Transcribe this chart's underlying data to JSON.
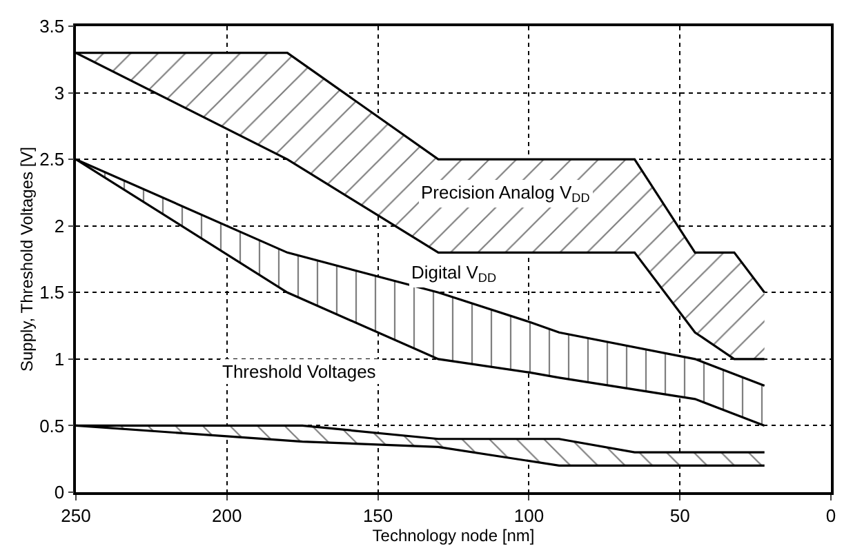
{
  "chart_data": {
    "type": "line",
    "xlabel": "Technology node [nm]",
    "ylabel": "Supply, Threshold Voltages [V]",
    "xlim": [
      250,
      0
    ],
    "xticks": [
      250,
      200,
      150,
      100,
      50,
      0
    ],
    "ylim": [
      0,
      3.5
    ],
    "yticks": [
      0,
      0.5,
      1,
      1.5,
      2,
      2.5,
      3,
      3.5
    ],
    "grid": true,
    "line_style": "solid",
    "marker": "none",
    "series": [
      {
        "color": "#000000",
        "x": [
          250,
          180,
          130,
          65,
          45,
          32,
          22
        ],
        "values": [
          3.3,
          3.3,
          2.5,
          2.5,
          1.8,
          1.8,
          1.5
        ],
        "upper": [
          3.3,
          3.3,
          2.5,
          2.5,
          1.8,
          1.8,
          1.5
        ],
        "lower": [
          3.3,
          2.5,
          1.8,
          1.8,
          1.2,
          1.0,
          1.0
        ]
      },
      {
        "color": "#000000",
        "x": [
          250,
          180,
          130,
          100,
          90,
          45,
          22
        ],
        "values": [
          2.5,
          1.8,
          1.5,
          1.28,
          1.2,
          1.0,
          0.8
        ],
        "upper": [
          2.5,
          1.8,
          1.5,
          1.28,
          1.2,
          1.0,
          0.8
        ],
        "lower": [
          2.5,
          1.5,
          1.0,
          0.9,
          0.86,
          0.7,
          0.5
        ]
      },
      {
        "color": "#000000",
        "x": [
          250,
          200,
          175,
          130,
          90,
          65,
          22
        ],
        "values": [
          0.5,
          0.5,
          0.5,
          0.4,
          0.4,
          0.3,
          0.3
        ],
        "upper": [
          0.5,
          0.5,
          0.5,
          0.4,
          0.4,
          0.3,
          0.3
        ],
        "lower": [
          0.5,
          0.42,
          0.38,
          0.34,
          0.2,
          0.2,
          0.2
        ]
      },
      {
        "color": "#000000",
        "x": [
          250,
          180,
          130,
          65,
          45,
          32,
          22
        ],
        "values": [
          3.3,
          2.5,
          1.8,
          1.8,
          1.2,
          1.0,
          1.0
        ]
      },
      {
        "color": "#000000",
        "x": [
          250,
          180,
          130,
          100,
          90,
          45,
          22
        ],
        "values": [
          2.5,
          1.5,
          1.0,
          0.9,
          0.86,
          0.7,
          0.5
        ]
      },
      {
        "color": "#000000",
        "x": [
          250,
          200,
          175,
          130,
          90,
          65,
          22
        ],
        "values": [
          0.5,
          0.42,
          0.38,
          0.34,
          0.2,
          0.2,
          0.2
        ]
      }
    ],
    "annotations": [
      "Precision Analog V$_{DD}$",
      "Digital V$_{DD}$",
      "Threshold Voltages"
    ]
  }
}
